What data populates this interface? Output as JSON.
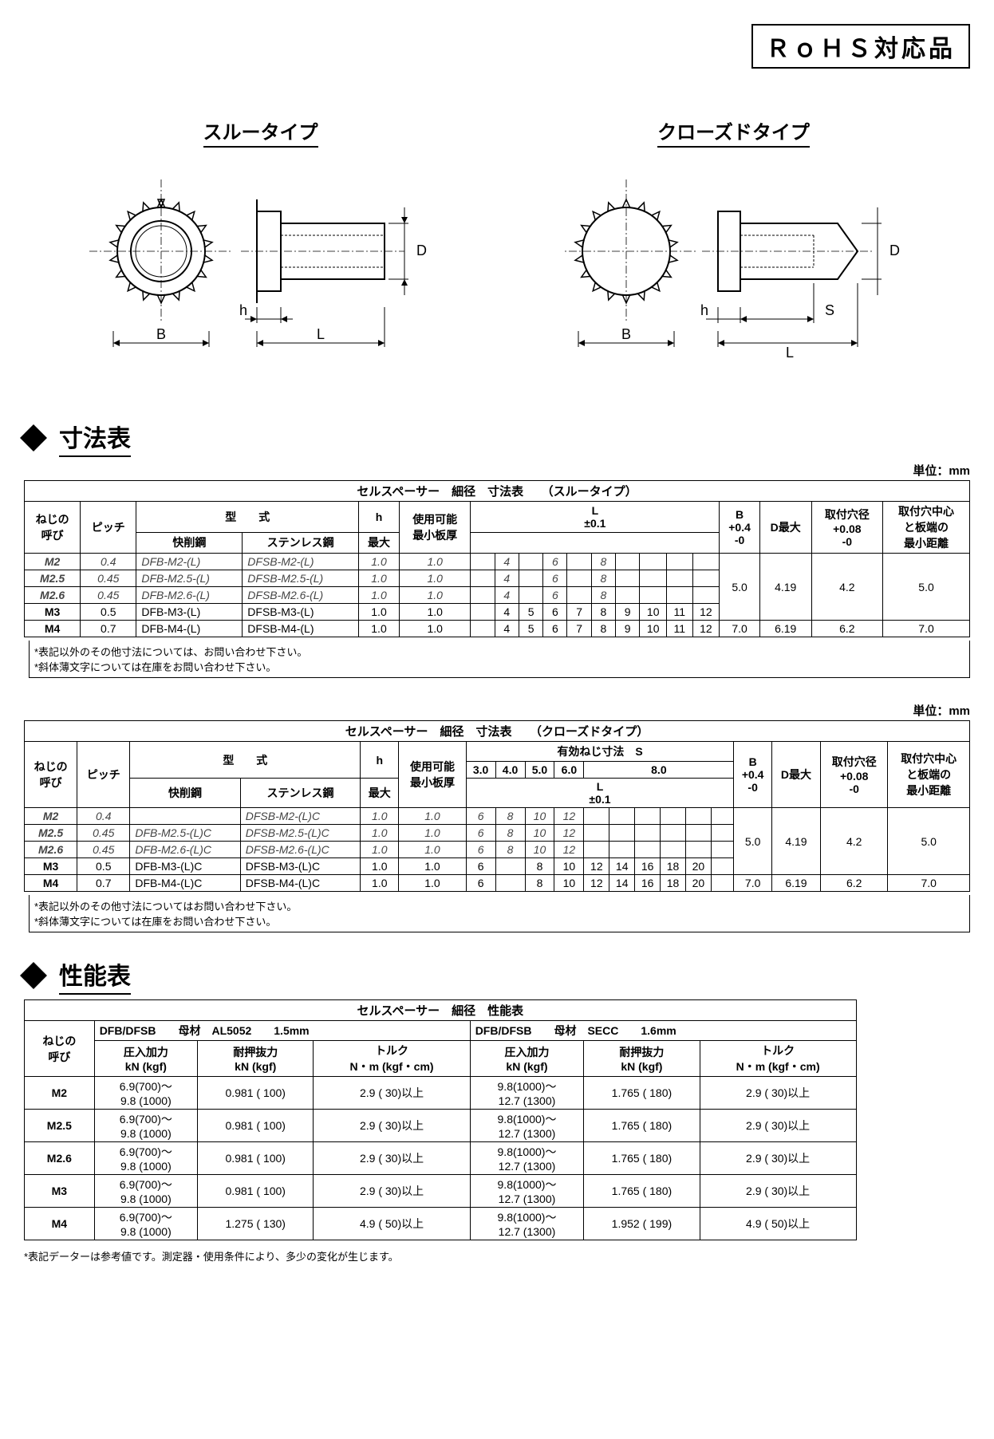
{
  "rohs": "ＲｏＨＳ対応品",
  "types": {
    "through": "スルータイプ",
    "closed": "クローズドタイプ"
  },
  "drawing_labels": {
    "B": "B",
    "h": "h",
    "L": "L",
    "D": "D",
    "S": "S"
  },
  "section": {
    "dim_table": "寸法表",
    "perf_table": "性能表",
    "unit_mm": "単位：mm"
  },
  "table1": {
    "title": "セルスペーサー　細径　寸法表　　（スルータイプ）",
    "hdr": {
      "neji": "ねじの\n呼び",
      "pitch": "ピッチ",
      "model": "型　　式",
      "steel": "快削鋼",
      "sus": "ステンレス鋼",
      "h": "h",
      "max": "最大",
      "min_thick": "使用可能\n最小板厚",
      "L": "L",
      "L_tol": "±0.1",
      "B": "B\n+0.4\n-0",
      "Dmax": "D最大",
      "hole": "取付穴径\n+0.08\n-0",
      "edge": "取付穴中心\nと板端の\n最小距離"
    },
    "rows": [
      {
        "c": "i",
        "neji": "M2",
        "pitch": "0.4",
        "steel": "DFB-M2-(L)",
        "sus": "DFSB-M2-(L)",
        "h": "1.0",
        "t": "1.0",
        "L": [
          "",
          "4",
          "",
          "6",
          "",
          "8",
          "",
          "",
          "",
          ""
        ]
      },
      {
        "c": "i",
        "neji": "M2.5",
        "pitch": "0.45",
        "steel": "DFB-M2.5-(L)",
        "sus": "DFSB-M2.5-(L)",
        "h": "1.0",
        "t": "1.0",
        "L": [
          "",
          "4",
          "",
          "6",
          "",
          "8",
          "",
          "",
          "",
          ""
        ]
      },
      {
        "c": "i",
        "neji": "M2.6",
        "pitch": "0.45",
        "steel": "DFB-M2.6-(L)",
        "sus": "DFSB-M2.6-(L)",
        "h": "1.0",
        "t": "1.0",
        "L": [
          "",
          "4",
          "",
          "6",
          "",
          "8",
          "",
          "",
          "",
          ""
        ]
      },
      {
        "c": "n",
        "neji": "M3",
        "pitch": "0.5",
        "steel": "DFB-M3-(L)",
        "sus": "DFSB-M3-(L)",
        "h": "1.0",
        "t": "1.0",
        "L": [
          "",
          "4",
          "5",
          "6",
          "7",
          "8",
          "9",
          "10",
          "11",
          "12"
        ]
      },
      {
        "c": "n",
        "neji": "M4",
        "pitch": "0.7",
        "steel": "DFB-M4-(L)",
        "sus": "DFSB-M4-(L)",
        "h": "1.0",
        "t": "1.0",
        "L": [
          "",
          "4",
          "5",
          "6",
          "7",
          "8",
          "9",
          "10",
          "11",
          "12"
        ]
      }
    ],
    "group1": {
      "B": "5.0",
      "D": "4.19",
      "hole": "4.2",
      "edge": "5.0"
    },
    "group2": {
      "B": "7.0",
      "D": "6.19",
      "hole": "6.2",
      "edge": "7.0"
    },
    "note": "*表記以外のその他寸法については、お問い合わせ下さい。\n*斜体薄文字については在庫をお問い合わせ下さい。"
  },
  "table2": {
    "title": "セルスペーサー　細径　寸法表　　（クローズドタイプ）",
    "hdr": {
      "neji": "ねじの\n呼び",
      "pitch": "ピッチ",
      "model": "型　　式",
      "steel": "快削鋼",
      "sus": "ステンレス鋼",
      "h": "h",
      "max": "最大",
      "min_thick": "使用可能\n最小板厚",
      "eff_thread": "有効ねじ寸法　S",
      "s30": "3.0",
      "s40": "4.0",
      "s50": "5.0",
      "s60": "6.0",
      "s80": "8.0",
      "L": "L",
      "L_tol": "±0.1",
      "B": "B\n+0.4\n-0",
      "Dmax": "D最大",
      "hole": "取付穴径\n+0.08\n-0",
      "edge": "取付穴中心\nと板端の\n最小距離"
    },
    "rows": [
      {
        "c": "i",
        "neji": "M2",
        "pitch": "0.4",
        "steel": "",
        "sus": "DFSB-M2-(L)C",
        "h": "1.0",
        "t": "1.0",
        "S": [
          "6",
          "8",
          "10",
          "12",
          "",
          "",
          "",
          "",
          "",
          ""
        ]
      },
      {
        "c": "i",
        "neji": "M2.5",
        "pitch": "0.45",
        "steel": "DFB-M2.5-(L)C",
        "sus": "DFSB-M2.5-(L)C",
        "h": "1.0",
        "t": "1.0",
        "S": [
          "6",
          "8",
          "10",
          "12",
          "",
          "",
          "",
          "",
          "",
          ""
        ]
      },
      {
        "c": "i",
        "neji": "M2.6",
        "pitch": "0.45",
        "steel": "DFB-M2.6-(L)C",
        "sus": "DFSB-M2.6-(L)C",
        "h": "1.0",
        "t": "1.0",
        "S": [
          "6",
          "8",
          "10",
          "12",
          "",
          "",
          "",
          "",
          "",
          ""
        ]
      },
      {
        "c": "n",
        "neji": "M3",
        "pitch": "0.5",
        "steel": "DFB-M3-(L)C",
        "sus": "DFSB-M3-(L)C",
        "h": "1.0",
        "t": "1.0",
        "S": [
          "6",
          "",
          "8",
          "10",
          "12",
          "14",
          "16",
          "18",
          "20",
          ""
        ]
      },
      {
        "c": "n",
        "neji": "M4",
        "pitch": "0.7",
        "steel": "DFB-M4-(L)C",
        "sus": "DFSB-M4-(L)C",
        "h": "1.0",
        "t": "1.0",
        "S": [
          "6",
          "",
          "8",
          "10",
          "12",
          "14",
          "16",
          "18",
          "20",
          ""
        ]
      }
    ],
    "group1": {
      "B": "5.0",
      "D": "4.19",
      "hole": "4.2",
      "edge": "5.0"
    },
    "group2": {
      "B": "7.0",
      "D": "6.19",
      "hole": "6.2",
      "edge": "7.0"
    },
    "note": "*表記以外のその他寸法についてはお問い合わせ下さい。\n*斜体薄文字については在庫をお問い合わせ下さい。"
  },
  "perf": {
    "title": "セルスペーサー　細径　性能表",
    "left_head": "DFB/DFSB　　母材　AL5052　　1.5mm",
    "right_head": "DFB/DFSB　　母材　SECC　　1.6mm",
    "cols": {
      "neji": "ねじの\n呼び",
      "press": "圧入加力\nkN (kgf)",
      "pull": "耐押抜力\nkN (kgf)",
      "torque": "トルク\nN・m (kgf・cm)"
    },
    "rows": [
      {
        "neji": "M2",
        "lp": "6.9(700)～\n9.8 (1000)",
        "lr": "0.981 ( 100)",
        "lt": "2.9 ( 30)以上",
        "rp": "9.8(1000)～\n12.7 (1300)",
        "rr": "1.765 ( 180)",
        "rt": "2.9 ( 30)以上"
      },
      {
        "neji": "M2.5",
        "lp": "6.9(700)～\n9.8 (1000)",
        "lr": "0.981 ( 100)",
        "lt": "2.9 ( 30)以上",
        "rp": "9.8(1000)～\n12.7 (1300)",
        "rr": "1.765 ( 180)",
        "rt": "2.9 ( 30)以上"
      },
      {
        "neji": "M2.6",
        "lp": "6.9(700)～\n9.8 (1000)",
        "lr": "0.981 ( 100)",
        "lt": "2.9 ( 30)以上",
        "rp": "9.8(1000)～\n12.7 (1300)",
        "rr": "1.765 ( 180)",
        "rt": "2.9 ( 30)以上"
      },
      {
        "neji": "M3",
        "lp": "6.9(700)～\n9.8 (1000)",
        "lr": "0.981 ( 100)",
        "lt": "2.9 ( 30)以上",
        "rp": "9.8(1000)～\n12.7 (1300)",
        "rr": "1.765 ( 180)",
        "rt": "2.9 ( 30)以上"
      },
      {
        "neji": "M4",
        "lp": "6.9(700)～\n9.8 (1000)",
        "lr": "1.275 ( 130)",
        "lt": "4.9 ( 50)以上",
        "rp": "9.8(1000)～\n12.7 (1300)",
        "rr": "1.952 ( 199)",
        "rt": "4.9 ( 50)以上"
      }
    ],
    "note": "*表記データーは参考値です。測定器・使用条件により、多少の変化が生じます。"
  },
  "colors": {
    "bg": "#ffffff",
    "text": "#000000",
    "italic": "#555555",
    "border": "#000000"
  }
}
